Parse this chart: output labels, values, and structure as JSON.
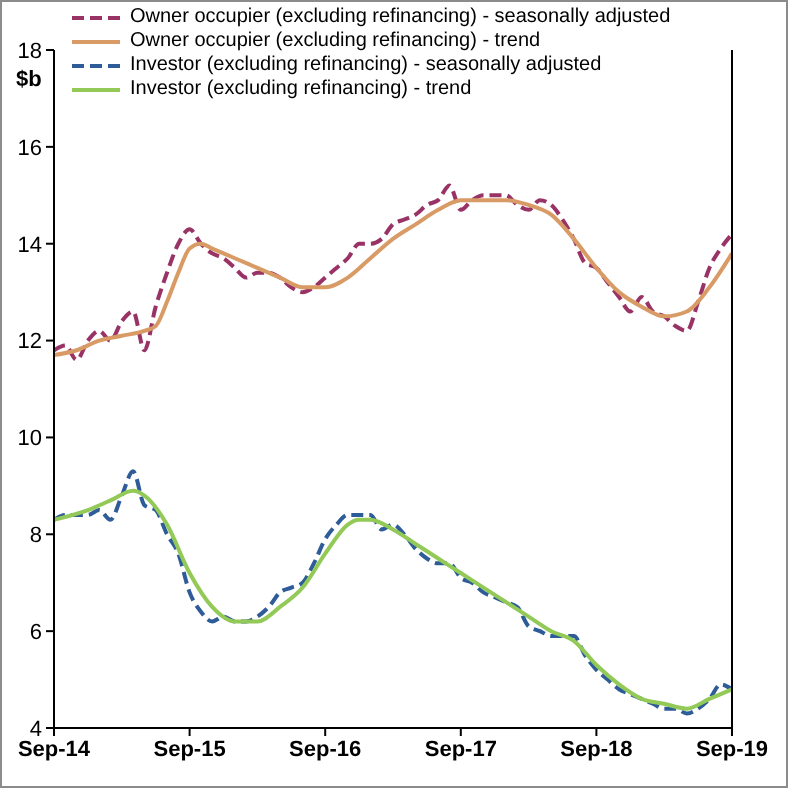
{
  "chart_data": {
    "type": "line",
    "ylabel": "$b",
    "legend": "top",
    "marker": "none",
    "grid": false,
    "x": [
      "2014-09",
      "2014-10",
      "2014-11",
      "2014-12",
      "2015-01",
      "2015-02",
      "2015-03",
      "2015-04",
      "2015-05",
      "2015-06",
      "2015-07",
      "2015-08",
      "2015-09",
      "2015-10",
      "2015-11",
      "2015-12",
      "2016-01",
      "2016-02",
      "2016-03",
      "2016-04",
      "2016-05",
      "2016-06",
      "2016-07",
      "2016-08",
      "2016-09",
      "2016-10",
      "2016-11",
      "2016-12",
      "2017-01",
      "2017-02",
      "2017-03",
      "2017-04",
      "2017-05",
      "2017-06",
      "2017-07",
      "2017-08",
      "2017-09",
      "2017-10",
      "2017-11",
      "2017-12",
      "2018-01",
      "2018-02",
      "2018-03",
      "2018-04",
      "2018-05",
      "2018-06",
      "2018-07",
      "2018-08",
      "2018-09",
      "2018-10",
      "2018-11",
      "2018-12",
      "2019-01",
      "2019-02",
      "2019-03",
      "2019-04",
      "2019-05",
      "2019-06",
      "2019-07",
      "2019-08",
      "2019-09"
    ],
    "xlim": [
      "2014-09",
      "2019-09"
    ],
    "xticks": [
      {
        "value": "2014-09",
        "label": "Sep-14"
      },
      {
        "value": "2015-09",
        "label": "Sep-15"
      },
      {
        "value": "2016-09",
        "label": "Sep-16"
      },
      {
        "value": "2017-09",
        "label": "Sep-17"
      },
      {
        "value": "2018-09",
        "label": "Sep-18"
      },
      {
        "value": "2019-09",
        "label": "Sep-19"
      }
    ],
    "ylim": [
      4,
      18
    ],
    "yticks": [
      4,
      6,
      8,
      10,
      12,
      14,
      16,
      18
    ],
    "series": [
      {
        "name": "Owner occupier (excluding refinancing) - seasonally adjusted",
        "color": "#993366",
        "line_style": "dashed",
        "values": [
          11.8,
          11.9,
          11.6,
          12.0,
          12.2,
          12.0,
          12.4,
          12.6,
          11.8,
          12.7,
          13.4,
          14.0,
          14.3,
          14.0,
          13.8,
          13.7,
          13.5,
          13.3,
          13.4,
          13.4,
          13.3,
          13.1,
          13.0,
          13.1,
          13.3,
          13.5,
          13.7,
          14.0,
          14.0,
          14.1,
          14.4,
          14.5,
          14.6,
          14.8,
          14.9,
          15.2,
          14.7,
          14.9,
          15.0,
          15.0,
          15.0,
          14.8,
          14.7,
          14.9,
          14.8,
          14.5,
          14.1,
          13.6,
          13.5,
          13.2,
          12.9,
          12.6,
          12.9,
          12.6,
          12.5,
          12.3,
          12.2,
          12.8,
          13.5,
          13.9,
          14.2
        ]
      },
      {
        "name": "Owner occupier (excluding refinancing) - trend",
        "color": "#d99b66",
        "line_style": "solid",
        "x": [
          "2014-09",
          "2014-11",
          "2015-01",
          "2015-03",
          "2015-05",
          "2015-06",
          "2015-07",
          "2015-08",
          "2015-09",
          "2015-10",
          "2015-11",
          "2016-01",
          "2016-03",
          "2016-05",
          "2016-07",
          "2016-09",
          "2016-11",
          "2017-01",
          "2017-03",
          "2017-05",
          "2017-07",
          "2017-09",
          "2017-11",
          "2018-01",
          "2018-03",
          "2018-05",
          "2018-07",
          "2018-09",
          "2018-11",
          "2019-01",
          "2019-03",
          "2019-05",
          "2019-07",
          "2019-09"
        ],
        "values": [
          11.7,
          11.8,
          12.0,
          12.1,
          12.2,
          12.3,
          12.8,
          13.4,
          13.9,
          14.0,
          13.9,
          13.7,
          13.5,
          13.3,
          13.1,
          13.1,
          13.3,
          13.7,
          14.1,
          14.4,
          14.7,
          14.9,
          14.9,
          14.9,
          14.8,
          14.6,
          14.1,
          13.5,
          13.0,
          12.7,
          12.5,
          12.6,
          13.1,
          13.8
        ]
      },
      {
        "name": "Investor (excluding refinancing) - seasonally adjusted",
        "color": "#2e5c99",
        "line_style": "dashed",
        "values": [
          8.3,
          8.4,
          8.4,
          8.4,
          8.5,
          8.3,
          8.8,
          9.3,
          8.6,
          8.5,
          8.0,
          7.6,
          6.8,
          6.4,
          6.2,
          6.3,
          6.2,
          6.2,
          6.3,
          6.5,
          6.8,
          6.9,
          7.0,
          7.4,
          7.9,
          8.2,
          8.4,
          8.4,
          8.4,
          8.1,
          8.2,
          8.0,
          7.7,
          7.5,
          7.4,
          7.4,
          7.1,
          7.0,
          6.8,
          6.7,
          6.6,
          6.5,
          6.1,
          6.0,
          5.9,
          5.9,
          5.9,
          5.5,
          5.2,
          5.0,
          4.8,
          4.7,
          4.6,
          4.5,
          4.4,
          4.4,
          4.3,
          4.4,
          4.6,
          4.9,
          4.8
        ]
      },
      {
        "name": "Investor (excluding refinancing) - trend",
        "color": "#92c957",
        "line_style": "solid",
        "x": [
          "2014-09",
          "2014-12",
          "2015-02",
          "2015-04",
          "2015-05",
          "2015-07",
          "2015-09",
          "2015-11",
          "2016-01",
          "2016-03",
          "2016-05",
          "2016-07",
          "2016-09",
          "2016-11",
          "2016-12",
          "2017-01",
          "2017-03",
          "2017-05",
          "2017-07",
          "2017-09",
          "2017-11",
          "2018-01",
          "2018-03",
          "2018-05",
          "2018-07",
          "2018-09",
          "2018-11",
          "2019-01",
          "2019-03",
          "2019-05",
          "2019-07",
          "2019-09"
        ],
        "values": [
          8.3,
          8.5,
          8.7,
          8.9,
          8.8,
          8.2,
          7.2,
          6.5,
          6.2,
          6.2,
          6.5,
          6.9,
          7.6,
          8.2,
          8.3,
          8.3,
          8.1,
          7.8,
          7.5,
          7.2,
          6.9,
          6.6,
          6.3,
          6.0,
          5.8,
          5.3,
          4.9,
          4.6,
          4.5,
          4.4,
          4.6,
          4.8
        ]
      }
    ]
  }
}
